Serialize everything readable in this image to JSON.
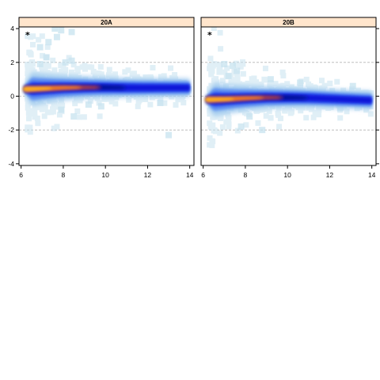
{
  "chart_data": [
    {
      "type": "scatter",
      "panel": "20A",
      "annotation": "*",
      "xlim": [
        5.9,
        14.2
      ],
      "ylim": [
        -4.1,
        4.1
      ],
      "xticks": [
        6,
        8,
        10,
        12,
        14
      ],
      "yticks": [
        -4,
        -2,
        0,
        2,
        4
      ],
      "reference_lines": [
        -2,
        0,
        2
      ],
      "trend": {
        "x": [
          6.3,
          7,
          8,
          9,
          10,
          11,
          12,
          13,
          14
        ],
        "y": [
          0.42,
          0.45,
          0.5,
          0.52,
          0.52,
          0.5,
          0.5,
          0.5,
          0.5
        ]
      },
      "outliers": [
        [
          6.9,
          2.9
        ],
        [
          7.2,
          2.3
        ],
        [
          7.6,
          4.0
        ],
        [
          7.9,
          3.9
        ],
        [
          8.4,
          3.8
        ],
        [
          8.4,
          2.1
        ],
        [
          7.7,
          3.5
        ],
        [
          6.9,
          1.9
        ],
        [
          7.3,
          3.2
        ],
        [
          8.1,
          2.0
        ],
        [
          9.8,
          -0.6
        ],
        [
          8.5,
          -1.2
        ],
        [
          12.6,
          -0.4
        ],
        [
          13.0,
          -2.3
        ],
        [
          7.9,
          -0.8
        ],
        [
          9.2,
          -0.5
        ]
      ]
    },
    {
      "type": "scatter",
      "panel": "20B",
      "annotation": "*",
      "xlim": [
        5.9,
        14.2
      ],
      "ylim": [
        -4.1,
        4.1
      ],
      "xticks": [
        6,
        8,
        10,
        12,
        14
      ],
      "yticks": [
        -4,
        -2,
        0,
        2,
        4
      ],
      "reference_lines": [
        -2,
        0,
        2
      ],
      "trend": {
        "x": [
          6.3,
          7,
          8,
          9,
          10,
          11,
          12,
          13,
          14
        ],
        "y": [
          -0.2,
          -0.18,
          -0.12,
          -0.08,
          -0.08,
          -0.1,
          -0.15,
          -0.2,
          -0.25
        ]
      },
      "outliers": [
        [
          7.0,
          1.9
        ],
        [
          7.4,
          1.8
        ],
        [
          7.8,
          -1.8
        ],
        [
          8.8,
          -2.0
        ],
        [
          9.5,
          -0.35
        ],
        [
          10.6,
          0.8
        ],
        [
          13.1,
          0.6
        ],
        [
          7.2,
          1.2
        ],
        [
          8.2,
          -1.2
        ],
        [
          12.5,
          -0.7
        ],
        [
          7.6,
          1.5
        ],
        [
          9.2,
          1.0
        ]
      ]
    }
  ],
  "colors": {
    "strip": "#ffe5cc",
    "grid": "#b3b3b3",
    "density": [
      "#c8e3f0",
      "#9cc8ee",
      "#5b8ef0",
      "#2a4cf0",
      "#0a17d8",
      "#08108c",
      "#c0453e",
      "#f07c1e",
      "#ffb020"
    ]
  }
}
